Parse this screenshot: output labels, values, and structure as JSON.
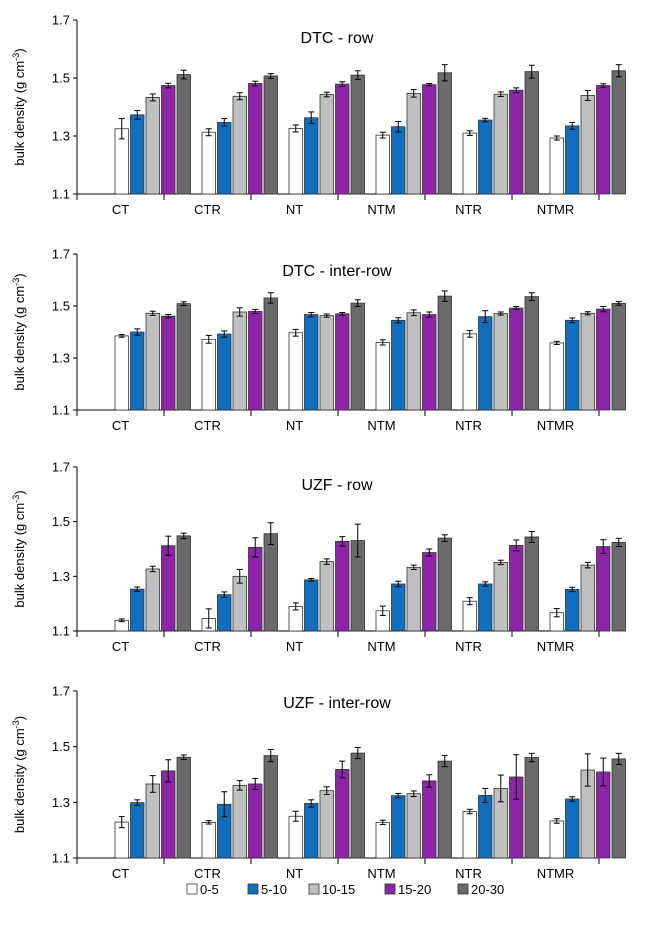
{
  "chart_data": [
    {
      "type": "bar",
      "title": "DTC - row",
      "ylabel": "bulk density (g cm-3)",
      "ylabel_main": "bulk density (g cm",
      "ylabel_sup": "-3",
      "ylabel_close": ")",
      "ylim": [
        1.1,
        1.7
      ],
      "yticks": [
        "1.1",
        "1.3",
        "1.5",
        "1.7"
      ],
      "categories": [
        "CT",
        "CTR",
        "NT",
        "NTM",
        "NTR",
        "NTMR"
      ],
      "series": [
        {
          "name": "0-5",
          "values": [
            1.325,
            1.313,
            1.326,
            1.303,
            1.31,
            1.293
          ],
          "errors": [
            0.035,
            0.012,
            0.012,
            0.01,
            0.008,
            0.007
          ]
        },
        {
          "name": "5-10",
          "values": [
            1.373,
            1.347,
            1.363,
            1.332,
            1.355,
            1.335
          ],
          "errors": [
            0.015,
            0.013,
            0.02,
            0.018,
            0.006,
            0.012
          ]
        },
        {
          "name": "10-15",
          "values": [
            1.433,
            1.437,
            1.443,
            1.447,
            1.444,
            1.44
          ],
          "errors": [
            0.012,
            0.012,
            0.008,
            0.013,
            0.008,
            0.017
          ]
        },
        {
          "name": "15-20",
          "values": [
            1.474,
            1.481,
            1.479,
            1.477,
            1.458,
            1.474
          ],
          "errors": [
            0.008,
            0.008,
            0.008,
            0.004,
            0.008,
            0.006
          ]
        },
        {
          "name": "20-30",
          "values": [
            1.512,
            1.507,
            1.51,
            1.518,
            1.522,
            1.525
          ],
          "errors": [
            0.015,
            0.008,
            0.015,
            0.028,
            0.022,
            0.021
          ]
        }
      ]
    },
    {
      "type": "bar",
      "title": "DTC - inter-row",
      "ylabel": "bulk density (g cm-3)",
      "ylabel_main": "bulk density (g cm",
      "ylabel_sup": "-3",
      "ylabel_close": ")",
      "ylim": [
        1.1,
        1.7
      ],
      "yticks": [
        "1.1",
        "1.3",
        "1.5",
        "1.7"
      ],
      "categories": [
        "CT",
        "CTR",
        "NT",
        "NTM",
        "NTR",
        "NTMR"
      ],
      "series": [
        {
          "name": "0-5",
          "values": [
            1.385,
            1.372,
            1.397,
            1.36,
            1.393,
            1.358
          ],
          "errors": [
            0.005,
            0.015,
            0.013,
            0.01,
            0.013,
            0.006
          ]
        },
        {
          "name": "5-10",
          "values": [
            1.4,
            1.392,
            1.467,
            1.445,
            1.459,
            1.445
          ],
          "errors": [
            0.012,
            0.012,
            0.008,
            0.01,
            0.023,
            0.009
          ]
        },
        {
          "name": "10-15",
          "values": [
            1.472,
            1.477,
            1.463,
            1.474,
            1.471,
            1.472
          ],
          "errors": [
            0.008,
            0.016,
            0.006,
            0.011,
            0.006,
            0.006
          ]
        },
        {
          "name": "15-20",
          "values": [
            1.461,
            1.479,
            1.47,
            1.467,
            1.492,
            1.488
          ],
          "errors": [
            0.006,
            0.008,
            0.005,
            0.01,
            0.006,
            0.01
          ]
        },
        {
          "name": "20-30",
          "values": [
            1.509,
            1.531,
            1.511,
            1.538,
            1.536,
            1.51
          ],
          "errors": [
            0.007,
            0.02,
            0.013,
            0.02,
            0.015,
            0.007
          ]
        }
      ]
    },
    {
      "type": "bar",
      "title": "UZF - row",
      "ylabel": "bulk density (g cm-3)",
      "ylabel_main": "bulk density (g cm",
      "ylabel_sup": "-3",
      "ylabel_close": ")",
      "ylim": [
        1.1,
        1.7
      ],
      "yticks": [
        "1.1",
        "1.3",
        "1.5",
        "1.7"
      ],
      "categories": [
        "CT",
        "CTR",
        "NT",
        "NTM",
        "NTR",
        "NTMR"
      ],
      "series": [
        {
          "name": "0-5",
          "values": [
            1.139,
            1.146,
            1.19,
            1.174,
            1.209,
            1.167
          ],
          "errors": [
            0.005,
            0.035,
            0.013,
            0.017,
            0.013,
            0.015
          ]
        },
        {
          "name": "5-10",
          "values": [
            1.253,
            1.233,
            1.287,
            1.272,
            1.272,
            1.252
          ],
          "errors": [
            0.008,
            0.01,
            0.005,
            0.01,
            0.008,
            0.008
          ]
        },
        {
          "name": "10-15",
          "values": [
            1.327,
            1.3,
            1.354,
            1.333,
            1.351,
            1.341
          ],
          "errors": [
            0.01,
            0.025,
            0.01,
            0.008,
            0.008,
            0.01
          ]
        },
        {
          "name": "15-20",
          "values": [
            1.412,
            1.406,
            1.428,
            1.387,
            1.413,
            1.409
          ],
          "errors": [
            0.035,
            0.035,
            0.017,
            0.013,
            0.02,
            0.025
          ]
        },
        {
          "name": "20-30",
          "values": [
            1.448,
            1.456,
            1.431,
            1.44,
            1.444,
            1.424
          ],
          "errors": [
            0.01,
            0.04,
            0.06,
            0.012,
            0.02,
            0.015
          ]
        }
      ]
    },
    {
      "type": "bar",
      "title": "UZF - inter-row",
      "ylabel": "bulk density (g cm-3)",
      "ylabel_main": "bulk density (g cm",
      "ylabel_sup": "-3",
      "ylabel_close": ")",
      "ylim": [
        1.1,
        1.7
      ],
      "yticks": [
        "1.1",
        "1.3",
        "1.5",
        "1.7"
      ],
      "categories": [
        "CT",
        "CTR",
        "NT",
        "NTM",
        "NTR",
        "NTMR"
      ],
      "series": [
        {
          "name": "0-5",
          "values": [
            1.229,
            1.228,
            1.25,
            1.228,
            1.267,
            1.233
          ],
          "errors": [
            0.02,
            0.006,
            0.018,
            0.008,
            0.008,
            0.008
          ]
        },
        {
          "name": "5-10",
          "values": [
            1.299,
            1.293,
            1.296,
            1.324,
            1.325,
            1.312
          ],
          "errors": [
            0.01,
            0.045,
            0.013,
            0.008,
            0.025,
            0.008
          ]
        },
        {
          "name": "10-15",
          "values": [
            1.366,
            1.361,
            1.342,
            1.331,
            1.35,
            1.416
          ],
          "errors": [
            0.03,
            0.017,
            0.014,
            0.01,
            0.048,
            0.058
          ]
        },
        {
          "name": "15-20",
          "values": [
            1.413,
            1.366,
            1.418,
            1.377,
            1.391,
            1.409
          ],
          "errors": [
            0.04,
            0.02,
            0.03,
            0.022,
            0.08,
            0.05
          ]
        },
        {
          "name": "20-30",
          "values": [
            1.462,
            1.468,
            1.477,
            1.448,
            1.461,
            1.456
          ],
          "errors": [
            0.008,
            0.022,
            0.02,
            0.02,
            0.015,
            0.02
          ]
        }
      ]
    }
  ],
  "legend": {
    "placement": "bottom",
    "items": [
      {
        "label": "0-5",
        "color": "#ffffff"
      },
      {
        "label": "5-10",
        "color": "#0e6fc1"
      },
      {
        "label": "10-15",
        "color": "#c0c0c0"
      },
      {
        "label": "15-20",
        "color": "#8e24aa"
      },
      {
        "label": "20-30",
        "color": "#6a6a6a"
      }
    ]
  },
  "colors": {
    "series": [
      "#ffffff",
      "#0e6fc1",
      "#c0c0c0",
      "#8e24aa",
      "#6a6a6a"
    ],
    "bar_stroke": "#333333",
    "axis": "#000000"
  },
  "grid": false
}
